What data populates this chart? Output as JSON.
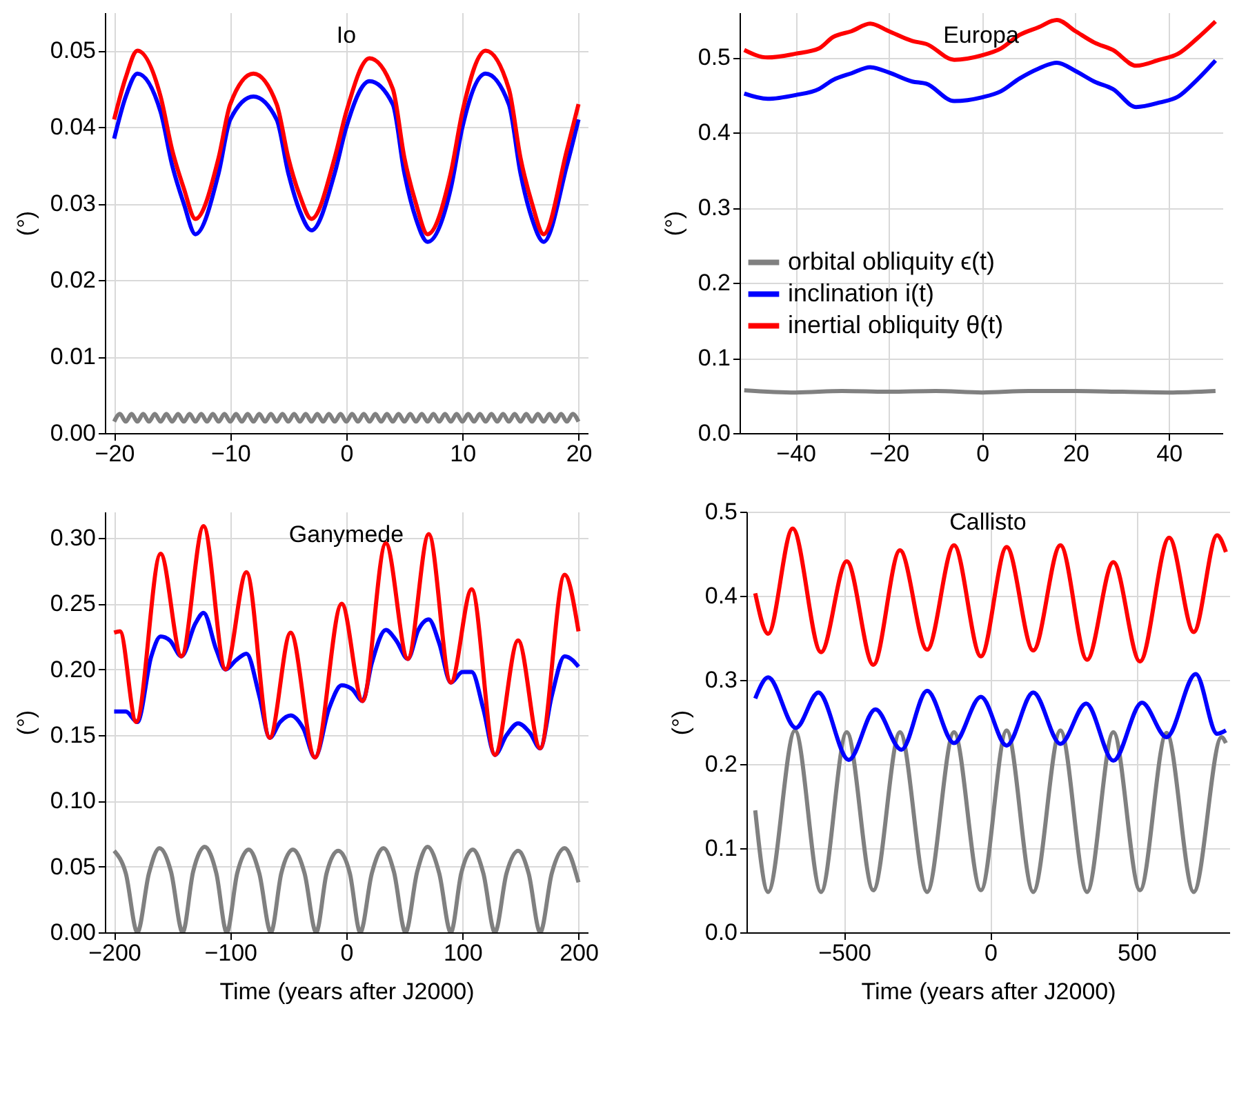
{
  "chart_data": [
    {
      "type": "line",
      "title": "Io",
      "ylabel": "(°)",
      "xlim": [
        -20.8,
        20.8
      ],
      "xticks": [
        -20,
        -10,
        0,
        10,
        20
      ],
      "ylim": [
        0,
        0.055
      ],
      "yticks": [
        {
          "value": 0,
          "label": "0.00"
        },
        0.01,
        0.02,
        0.03,
        0.04,
        0.05
      ],
      "grid": true,
      "legend": false,
      "series": [
        {
          "color": "#808080",
          "x": [
            -20,
            -19.5,
            -19,
            -18.5,
            -18,
            -17.5,
            -17,
            -16.5,
            -16,
            -15.5,
            -15,
            -14.5,
            -14,
            -13.5,
            -13,
            -12.5,
            -12,
            -11.5,
            -11,
            -10.5,
            -10,
            -9.5,
            -9,
            -8.5,
            -8,
            -7.5,
            -7,
            -6.5,
            -6,
            -5.5,
            -5,
            -4.5,
            -4,
            -3.5,
            -3,
            -2.5,
            -2,
            -1.5,
            -1,
            -0.5,
            0,
            0.5,
            1,
            1.5,
            2,
            2.5,
            3,
            3.5,
            4,
            4.5,
            5,
            5.5,
            6,
            6.5,
            7,
            7.5,
            8,
            8.5,
            9,
            9.5,
            10,
            10.5,
            11,
            11.5,
            12,
            12.5,
            13,
            13.5,
            14,
            14.5,
            15,
            15.5,
            16,
            16.5,
            17,
            17.5,
            18,
            18.5,
            19,
            19.5,
            20
          ],
          "values": [
            0.0015,
            0.0025,
            0.0015,
            0.0025,
            0.0015,
            0.0025,
            0.0015,
            0.0025,
            0.0015,
            0.0025,
            0.0015,
            0.0025,
            0.0015,
            0.0025,
            0.0015,
            0.0025,
            0.0015,
            0.0025,
            0.0015,
            0.0025,
            0.0015,
            0.0025,
            0.0015,
            0.0025,
            0.0015,
            0.0025,
            0.0015,
            0.0025,
            0.0015,
            0.0025,
            0.0015,
            0.0025,
            0.0015,
            0.0025,
            0.0015,
            0.0025,
            0.0015,
            0.0025,
            0.0015,
            0.0025,
            0.0015,
            0.0025,
            0.0015,
            0.0025,
            0.0015,
            0.0025,
            0.0015,
            0.0025,
            0.0015,
            0.0025,
            0.0015,
            0.0025,
            0.0015,
            0.0025,
            0.0015,
            0.0025,
            0.0015,
            0.0025,
            0.0015,
            0.0025,
            0.0015,
            0.0025,
            0.0015,
            0.0025,
            0.0015,
            0.0025,
            0.0015,
            0.0025,
            0.0015,
            0.0025,
            0.0015,
            0.0025,
            0.0015,
            0.0025,
            0.0015,
            0.0025,
            0.0015,
            0.0025,
            0.0015,
            0.0025,
            0.0015
          ]
        },
        {
          "color": "#0000ff",
          "x": [
            -20,
            -19,
            -18,
            -16,
            -15,
            -14,
            -13,
            -11,
            -10,
            -8,
            -6,
            -5,
            -4,
            -3,
            -1,
            0,
            2,
            4,
            5,
            6,
            7,
            9,
            10,
            12,
            14,
            15,
            16,
            17,
            19,
            20
          ],
          "values": [
            0.0385,
            0.044,
            0.047,
            0.042,
            0.035,
            0.03,
            0.026,
            0.034,
            0.041,
            0.044,
            0.041,
            0.034,
            0.029,
            0.0265,
            0.034,
            0.04,
            0.046,
            0.043,
            0.034,
            0.028,
            0.025,
            0.032,
            0.04,
            0.047,
            0.043,
            0.034,
            0.028,
            0.025,
            0.035,
            0.041
          ]
        },
        {
          "color": "#ff0000",
          "x": [
            -20,
            -19,
            -18,
            -16,
            -15,
            -14,
            -13,
            -11,
            -10,
            -8,
            -6,
            -5,
            -4,
            -3,
            -1,
            0,
            2,
            4,
            5,
            6,
            7,
            9,
            10,
            12,
            14,
            15,
            16,
            17,
            19,
            20
          ],
          "values": [
            0.041,
            0.0465,
            0.05,
            0.044,
            0.037,
            0.032,
            0.028,
            0.036,
            0.043,
            0.047,
            0.043,
            0.036,
            0.031,
            0.028,
            0.036,
            0.042,
            0.049,
            0.045,
            0.036,
            0.03,
            0.026,
            0.034,
            0.042,
            0.05,
            0.045,
            0.036,
            0.03,
            0.026,
            0.037,
            0.043
          ]
        }
      ]
    },
    {
      "type": "line",
      "title": "Europa",
      "ylabel": "(°)",
      "xlim": [
        -52,
        51.5
      ],
      "xticks": [
        -40,
        -20,
        0,
        20,
        40
      ],
      "ylim": [
        0,
        0.56
      ],
      "yticks": [
        {
          "value": 0,
          "label": "0.0"
        },
        0.1,
        0.2,
        0.3,
        0.4,
        0.5
      ],
      "grid": true,
      "legend": "left",
      "series": [
        {
          "name": "orbital obliquity ϵ(t)",
          "color": "#808080",
          "x": [
            -51,
            -40,
            -30,
            -20,
            -10,
            0,
            10,
            20,
            30,
            40,
            50
          ],
          "values": [
            0.057,
            0.054,
            0.056,
            0.055,
            0.056,
            0.054,
            0.056,
            0.056,
            0.055,
            0.054,
            0.056
          ]
        },
        {
          "name": "inclination i(t)",
          "color": "#0000ff",
          "x": [
            -51,
            -46,
            -40,
            -35,
            -32,
            -28,
            -24,
            -20,
            -15,
            -12,
            -6,
            0,
            4,
            8,
            12,
            16,
            20,
            24,
            28,
            33,
            38,
            42,
            46,
            50
          ],
          "values": [
            0.452,
            0.445,
            0.45,
            0.458,
            0.47,
            0.479,
            0.487,
            0.48,
            0.468,
            0.465,
            0.442,
            0.447,
            0.455,
            0.472,
            0.485,
            0.493,
            0.482,
            0.468,
            0.458,
            0.434,
            0.44,
            0.448,
            0.47,
            0.496
          ]
        },
        {
          "name": "inertial obliquity θ(t)",
          "color": "#ff0000",
          "x": [
            -51,
            -46,
            -40,
            -35,
            -32,
            -28,
            -24,
            -20,
            -15,
            -12,
            -6,
            0,
            4,
            8,
            12,
            16,
            20,
            24,
            28,
            33,
            38,
            42,
            46,
            50
          ],
          "values": [
            0.51,
            0.5,
            0.505,
            0.512,
            0.527,
            0.535,
            0.545,
            0.535,
            0.522,
            0.518,
            0.497,
            0.503,
            0.512,
            0.53,
            0.54,
            0.55,
            0.535,
            0.52,
            0.51,
            0.489,
            0.497,
            0.505,
            0.525,
            0.548
          ]
        }
      ]
    },
    {
      "type": "line",
      "title": "Ganymede",
      "xlabel": "Time (years after J2000)",
      "ylabel": "(°)",
      "xlim": [
        -208,
        208
      ],
      "xticks": [
        -200,
        -100,
        0,
        100,
        200
      ],
      "ylim": [
        0,
        0.32
      ],
      "yticks": [
        {
          "value": 0,
          "label": "0.00"
        },
        0.05,
        {
          "value": 0.1,
          "label": "0.10"
        },
        0.15,
        {
          "value": 0.2,
          "label": "0.20"
        },
        0.25,
        {
          "value": 0.3,
          "label": "0.30"
        }
      ],
      "grid": true,
      "legend": false,
      "series": [
        {
          "color": "#808080",
          "x": [
            -200,
            -190,
            -180,
            -170,
            -161,
            -151,
            -141,
            -132,
            -122,
            -112,
            -103,
            -94,
            -84,
            -75,
            -65,
            -56,
            -46,
            -36,
            -26,
            -17,
            -7,
            3,
            12,
            22,
            32,
            41,
            51,
            61,
            70,
            80,
            90,
            99,
            109,
            118,
            128,
            138,
            148,
            157,
            167,
            177,
            188,
            200
          ],
          "values": [
            0.062,
            0.045,
            0,
            0.045,
            0.064,
            0.046,
            0,
            0.046,
            0.065,
            0.045,
            0,
            0.045,
            0.063,
            0.045,
            0,
            0.045,
            0.063,
            0.045,
            0,
            0.045,
            0.062,
            0.045,
            0,
            0.045,
            0.064,
            0.046,
            0,
            0.046,
            0.065,
            0.045,
            0,
            0.045,
            0.063,
            0.045,
            0,
            0.045,
            0.062,
            0.045,
            0,
            0.045,
            0.064,
            0.038
          ]
        },
        {
          "color": "#0000ff",
          "x": [
            -200,
            -190,
            -180,
            -168,
            -160,
            -152,
            -142,
            -130,
            -123,
            -112,
            -104,
            -95,
            -86,
            -75,
            -66,
            -57,
            -48,
            -37,
            -27,
            -15,
            -4,
            5,
            14,
            22,
            34,
            43,
            53,
            62,
            71,
            80,
            90,
            100,
            108,
            118,
            128,
            138,
            148,
            158,
            167,
            177,
            188,
            195,
            200
          ],
          "values": [
            0.168,
            0.168,
            0.16,
            0.21,
            0.225,
            0.222,
            0.21,
            0.235,
            0.243,
            0.215,
            0.2,
            0.207,
            0.212,
            0.18,
            0.148,
            0.16,
            0.165,
            0.155,
            0.133,
            0.17,
            0.188,
            0.185,
            0.176,
            0.205,
            0.23,
            0.222,
            0.208,
            0.23,
            0.238,
            0.22,
            0.19,
            0.198,
            0.198,
            0.17,
            0.135,
            0.15,
            0.159,
            0.152,
            0.14,
            0.18,
            0.21,
            0.207,
            0.202
          ]
        },
        {
          "color": "#ff0000",
          "x": [
            -200,
            -195,
            -181,
            -160,
            -142,
            -123,
            -104,
            -86,
            -66,
            -48,
            -27,
            -4,
            14,
            34,
            53,
            71,
            90,
            108,
            128,
            148,
            167,
            188,
            200
          ],
          "values": [
            0.228,
            0.229,
            0.16,
            0.288,
            0.21,
            0.309,
            0.2,
            0.274,
            0.148,
            0.228,
            0.133,
            0.25,
            0.176,
            0.296,
            0.208,
            0.303,
            0.19,
            0.261,
            0.135,
            0.222,
            0.14,
            0.272,
            0.229
          ]
        }
      ]
    },
    {
      "type": "line",
      "title": "Callisto",
      "xlabel": "Time (years after J2000)",
      "ylabel": "(°)",
      "xlim": [
        -834,
        818
      ],
      "xticks": [
        -500,
        0,
        500
      ],
      "ylim": [
        0,
        0.5
      ],
      "yticks": [
        {
          "value": 0,
          "label": "0.0"
        },
        0.1,
        0.2,
        0.3,
        0.4,
        0.5
      ],
      "grid": true,
      "legend": false,
      "series": [
        {
          "color": "#808080",
          "x": [
            -804,
            -760,
            -668,
            -579,
            -491,
            -400,
            -309,
            -216,
            -124,
            -32,
            56,
            147,
            240,
            331,
            421,
            512,
            603,
            696,
            791,
            806
          ],
          "values": [
            0.145,
            0.048,
            0.24,
            0.048,
            0.238,
            0.05,
            0.238,
            0.048,
            0.238,
            0.05,
            0.24,
            0.048,
            0.24,
            0.048,
            0.238,
            0.05,
            0.237,
            0.048,
            0.232,
            0.225
          ]
        },
        {
          "color": "#0000ff",
          "x": [
            -804,
            -760,
            -665,
            -588,
            -484,
            -393,
            -304,
            -216,
            -124,
            -32,
            56,
            147,
            240,
            328,
            421,
            519,
            603,
            703,
            776,
            806
          ],
          "values": [
            0.278,
            0.303,
            0.243,
            0.285,
            0.205,
            0.265,
            0.217,
            0.287,
            0.225,
            0.28,
            0.222,
            0.285,
            0.224,
            0.272,
            0.204,
            0.273,
            0.232,
            0.307,
            0.236,
            0.24
          ]
        },
        {
          "color": "#ff0000",
          "x": [
            -804,
            -760,
            -676,
            -579,
            -491,
            -400,
            -309,
            -216,
            -124,
            -32,
            56,
            147,
            240,
            331,
            421,
            512,
            612,
            696,
            776,
            806
          ],
          "values": [
            0.403,
            0.355,
            0.48,
            0.333,
            0.441,
            0.318,
            0.454,
            0.336,
            0.46,
            0.328,
            0.458,
            0.335,
            0.46,
            0.324,
            0.44,
            0.322,
            0.469,
            0.357,
            0.472,
            0.452
          ]
        }
      ]
    }
  ]
}
